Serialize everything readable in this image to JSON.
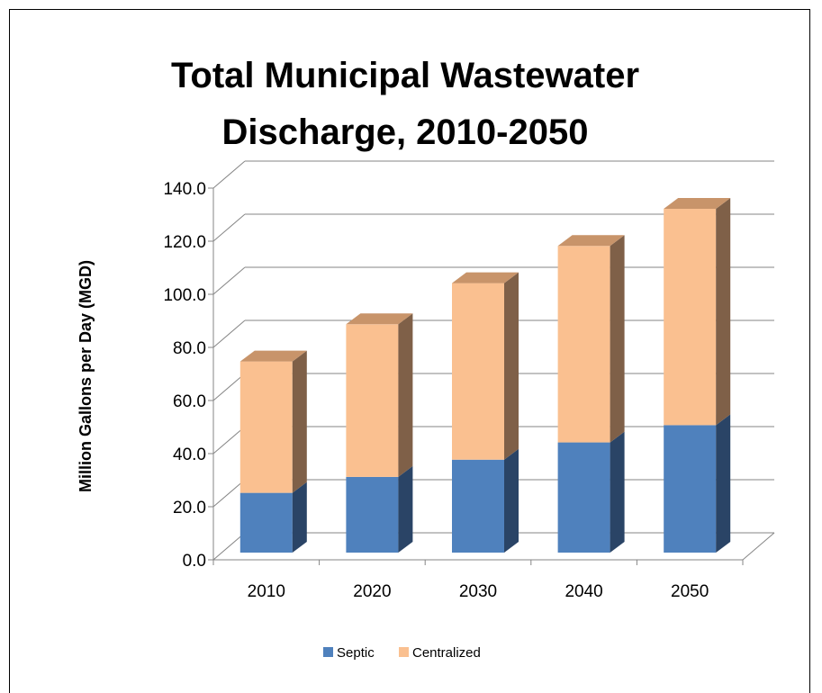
{
  "chart_data": {
    "type": "bar",
    "stacked": true,
    "three_d": true,
    "title_lines": [
      "Total Municipal Wastewater",
      "Discharge, 2010-2050"
    ],
    "xlabel": "",
    "ylabel": "Million Gallons per Day (MGD)",
    "categories": [
      "2010",
      "2020",
      "2030",
      "2040",
      "2050"
    ],
    "series": [
      {
        "name": "Septic",
        "values": [
          22.5,
          28.5,
          35.0,
          41.5,
          48.0
        ],
        "color": "#4f81bd",
        "side_color": "#2a4466",
        "top_color": "#3d6799"
      },
      {
        "name": "Centralized",
        "values": [
          49.5,
          57.5,
          66.5,
          74.0,
          81.5
        ],
        "color": "#fac090",
        "side_color": "#7f6048",
        "top_color": "#c8946a"
      }
    ],
    "ylim": [
      0,
      140
    ],
    "yticks": [
      "0.0",
      "20.0",
      "40.0",
      "60.0",
      "80.0",
      "100.0",
      "120.0",
      "140.0"
    ],
    "grid": true,
    "legend_position": "bottom"
  }
}
